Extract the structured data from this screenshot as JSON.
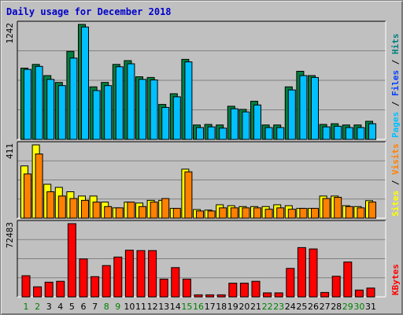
{
  "chart_data": {
    "type": "bar",
    "title": "Daily usage for December 2018",
    "categories": [
      "1",
      "2",
      "3",
      "4",
      "5",
      "6",
      "7",
      "8",
      "9",
      "10",
      "11",
      "12",
      "13",
      "14",
      "15",
      "16",
      "17",
      "18",
      "19",
      "20",
      "21",
      "22",
      "23",
      "24",
      "25",
      "26",
      "27",
      "28",
      "29",
      "30",
      "31"
    ],
    "weekend_days": [
      "1",
      "2",
      "8",
      "9",
      "15",
      "16",
      "22",
      "23",
      "29",
      "30"
    ],
    "colors": {
      "hits": "#008040",
      "files": "#00c0ff",
      "visits": "#ff8000",
      "sites": "#ffff00",
      "kbytes": "#ff0000",
      "weekday_label": "#000000",
      "weekend_label": "#008000"
    },
    "panels": [
      {
        "name": "hits-files",
        "ymax_label": "1242",
        "ymax": 1242,
        "legend": [
          {
            "text": "Pages",
            "color": "#00c0ff"
          },
          {
            "text": " / ",
            "color": "#000000"
          },
          {
            "text": "Files",
            "color": "#0040ff"
          },
          {
            "text": " / ",
            "color": "#000000"
          },
          {
            "text": "Hits",
            "color": "#008080"
          }
        ],
        "series": [
          {
            "name": "Hits",
            "color": "#008040",
            "values": [
              770,
              810,
              689,
              615,
              951,
              1242,
              567,
              615,
              810,
              851,
              676,
              669,
              378,
              493,
              864,
              156,
              162,
              156,
              358,
              324,
              412,
              156,
              156,
              567,
              736,
              689,
              162,
              169,
              156,
              156,
              196
            ]
          },
          {
            "name": "Files",
            "color": "#00c0ff",
            "values": [
              756,
              789,
              648,
              581,
              878,
              1214,
              527,
              581,
              784,
              817,
              648,
              642,
              345,
              460,
              837,
              128,
              135,
              122,
              331,
              297,
              372,
              128,
              128,
              534,
              689,
              669,
              135,
              142,
              128,
              128,
              169
            ]
          }
        ]
      },
      {
        "name": "sites-visits",
        "ymax_label": "411",
        "ymax": 411,
        "legend": [
          {
            "text": "Sites",
            "color": "#ffff00"
          },
          {
            "text": " / ",
            "color": "#000000"
          },
          {
            "text": "Visits",
            "color": "#ff8000"
          }
        ],
        "series": [
          {
            "name": "Sites",
            "color": "#ffff00",
            "values": [
              293,
              411,
              190,
              173,
              148,
              124,
              124,
              90,
              58,
              90,
              85,
              100,
              100,
              55,
              275,
              48,
              45,
              75,
              70,
              65,
              65,
              65,
              75,
              70,
              55,
              55,
              124,
              124,
              70,
              65,
              98
            ]
          },
          {
            "name": "Visits",
            "color": "#ff8000",
            "values": [
              248,
              360,
              148,
              124,
              110,
              100,
              90,
              65,
              58,
              90,
              65,
              90,
              110,
              55,
              260,
              40,
              40,
              58,
              58,
              58,
              58,
              50,
              58,
              50,
              55,
              55,
              110,
              117,
              65,
              58,
              90
            ]
          }
        ]
      },
      {
        "name": "kbytes",
        "ymax_label": "72483",
        "ymax": 72483,
        "legend": [
          {
            "text": "KBytes",
            "color": "#ff0000"
          }
        ],
        "series": [
          {
            "name": "KBytes",
            "color": "#ff0000",
            "values": [
              21000,
              10000,
              14600,
              15400,
              72483,
              37600,
              20000,
              31000,
              39400,
              46200,
              45800,
              45800,
              17600,
              29000,
              17600,
              2000,
              2000,
              2000,
              13600,
              13600,
              15400,
              4000,
              4000,
              28200,
              48800,
              47500,
              4400,
              20400,
              34500,
              6800,
              8700
            ]
          }
        ]
      }
    ]
  }
}
